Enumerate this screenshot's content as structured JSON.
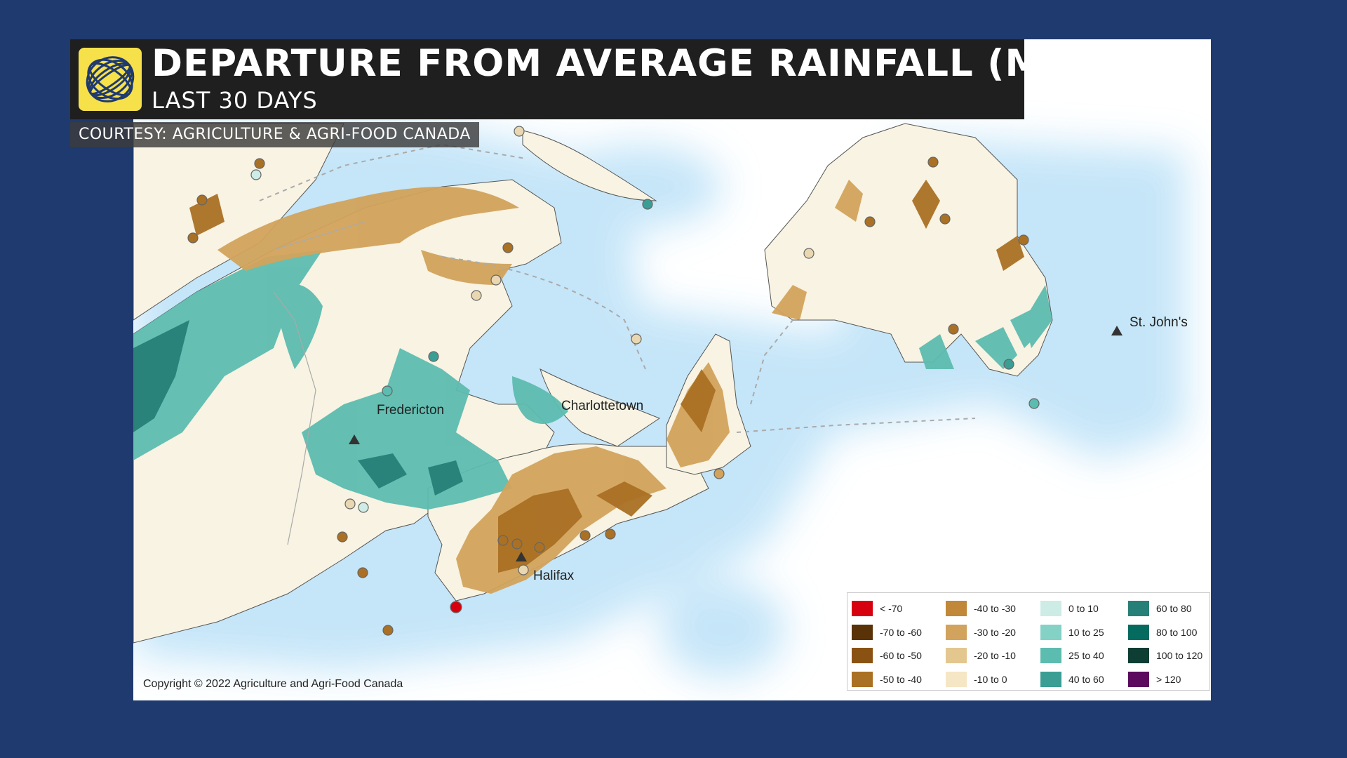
{
  "header": {
    "title": "DEPARTURE FROM AVERAGE RAINFALL (MM)",
    "subtitle": "LAST 30 DAYS",
    "credit": "COURTESY: AGRICULTURE & AGRI-FOOD CANADA",
    "logo_icon": "globe-swirl-logo-icon"
  },
  "map": {
    "cities": [
      {
        "name": "Fredericton"
      },
      {
        "name": "Charlottetown"
      },
      {
        "name": "Halifax"
      },
      {
        "name": "St. John's"
      }
    ],
    "copyright": "Copyright © 2022 Agriculture and Agri-Food Canada"
  },
  "legend": {
    "items": [
      {
        "label": "< -70",
        "color": "#d7000f"
      },
      {
        "label": "-70 to -60",
        "color": "#5a3208"
      },
      {
        "label": "-60 to -50",
        "color": "#8a5212"
      },
      {
        "label": "-50 to -40",
        "color": "#aa7024"
      },
      {
        "label": "-40 to -30",
        "color": "#c08838"
      },
      {
        "label": "-30 to -20",
        "color": "#d2a35c"
      },
      {
        "label": "-20 to -10",
        "color": "#e3c78e"
      },
      {
        "label": "-10 to 0",
        "color": "#f5e6c5"
      },
      {
        "label": "0 to 10",
        "color": "#cdece6"
      },
      {
        "label": "10 to 25",
        "color": "#84d1c5"
      },
      {
        "label": "25 to 40",
        "color": "#5dbcb0"
      },
      {
        "label": "40 to 60",
        "color": "#3a9e94"
      },
      {
        "label": "60 to 80",
        "color": "#268077"
      },
      {
        "label": "80 to 100",
        "color": "#066b5f"
      },
      {
        "label": "100 to 120",
        "color": "#0e3d33"
      },
      {
        "label": "> 120",
        "color": "#5c0a5e"
      }
    ]
  }
}
